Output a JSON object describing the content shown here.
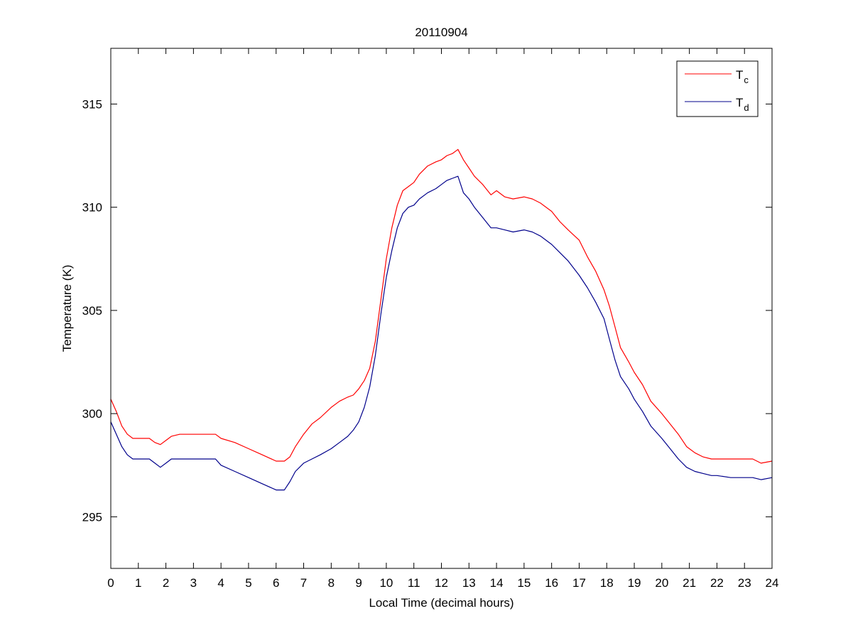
{
  "chart_data": {
    "type": "line",
    "title": "20110904",
    "xlabel": "Local Time (decimal hours)",
    "ylabel": "Temperature (K)",
    "xlim": [
      0,
      24
    ],
    "ylim": [
      292.5,
      317.7
    ],
    "xticks": [
      0,
      1,
      2,
      3,
      4,
      5,
      6,
      7,
      8,
      9,
      10,
      11,
      12,
      13,
      14,
      15,
      16,
      17,
      18,
      19,
      20,
      21,
      22,
      23,
      24
    ],
    "yticks": [
      295,
      300,
      305,
      310,
      315
    ],
    "grid": false,
    "legend_position": "top-right",
    "series": [
      {
        "name": "T",
        "subscript": "c",
        "color": "#ff0000",
        "x": [
          0,
          0.2,
          0.4,
          0.6,
          0.8,
          1.0,
          1.4,
          1.6,
          1.8,
          2.0,
          2.2,
          2.5,
          3.0,
          3.5,
          3.8,
          4.0,
          4.5,
          5.0,
          5.5,
          6.0,
          6.3,
          6.5,
          6.7,
          7.0,
          7.3,
          7.6,
          8.0,
          8.3,
          8.6,
          8.8,
          9.0,
          9.2,
          9.4,
          9.6,
          9.8,
          10.0,
          10.2,
          10.4,
          10.6,
          10.8,
          11.0,
          11.2,
          11.5,
          11.8,
          12.0,
          12.2,
          12.4,
          12.6,
          12.8,
          13.0,
          13.2,
          13.5,
          13.8,
          14.0,
          14.3,
          14.6,
          15.0,
          15.3,
          15.6,
          16.0,
          16.3,
          16.6,
          17.0,
          17.3,
          17.6,
          17.9,
          18.1,
          18.3,
          18.5,
          18.8,
          19.0,
          19.3,
          19.6,
          20.0,
          20.3,
          20.6,
          20.9,
          21.2,
          21.5,
          21.8,
          22.0,
          22.5,
          23.0,
          23.3,
          23.6,
          24.0
        ],
        "y": [
          300.7,
          300.1,
          299.4,
          299.0,
          298.8,
          298.8,
          298.8,
          298.6,
          298.5,
          298.7,
          298.9,
          299.0,
          299.0,
          299.0,
          299.0,
          298.8,
          298.6,
          298.3,
          298.0,
          297.7,
          297.7,
          297.9,
          298.4,
          299.0,
          299.5,
          299.8,
          300.3,
          300.6,
          300.8,
          300.9,
          301.2,
          301.6,
          302.2,
          303.5,
          305.5,
          307.5,
          309.0,
          310.1,
          310.8,
          311.0,
          311.2,
          311.6,
          312.0,
          312.2,
          312.3,
          312.5,
          312.6,
          312.8,
          312.3,
          311.9,
          311.5,
          311.1,
          310.6,
          310.8,
          310.5,
          310.4,
          310.5,
          310.4,
          310.2,
          309.8,
          309.3,
          308.9,
          308.4,
          307.6,
          306.9,
          306.0,
          305.2,
          304.2,
          303.2,
          302.5,
          302.0,
          301.4,
          300.6,
          300.0,
          299.5,
          299.0,
          298.4,
          298.1,
          297.9,
          297.8,
          297.8,
          297.8,
          297.8,
          297.8,
          297.6,
          297.7
        ]
      },
      {
        "name": "T",
        "subscript": "d",
        "color": "#00008b",
        "x": [
          0,
          0.2,
          0.4,
          0.6,
          0.8,
          1.0,
          1.4,
          1.6,
          1.8,
          2.0,
          2.2,
          2.5,
          3.0,
          3.5,
          3.8,
          4.0,
          4.5,
          5.0,
          5.5,
          6.0,
          6.3,
          6.5,
          6.7,
          7.0,
          7.3,
          7.6,
          8.0,
          8.3,
          8.6,
          8.8,
          9.0,
          9.2,
          9.4,
          9.6,
          9.8,
          10.0,
          10.2,
          10.4,
          10.6,
          10.8,
          11.0,
          11.2,
          11.5,
          11.8,
          12.0,
          12.2,
          12.4,
          12.6,
          12.8,
          13.0,
          13.2,
          13.5,
          13.8,
          14.0,
          14.3,
          14.6,
          15.0,
          15.3,
          15.6,
          16.0,
          16.3,
          16.6,
          17.0,
          17.3,
          17.6,
          17.9,
          18.1,
          18.3,
          18.5,
          18.8,
          19.0,
          19.3,
          19.6,
          20.0,
          20.3,
          20.6,
          20.9,
          21.2,
          21.5,
          21.8,
          22.0,
          22.5,
          23.0,
          23.3,
          23.6,
          24.0
        ],
        "y": [
          299.6,
          299.0,
          298.4,
          298.0,
          297.8,
          297.8,
          297.8,
          297.6,
          297.4,
          297.6,
          297.8,
          297.8,
          297.8,
          297.8,
          297.8,
          297.5,
          297.2,
          296.9,
          296.6,
          296.3,
          296.3,
          296.7,
          297.2,
          297.6,
          297.8,
          298.0,
          298.3,
          298.6,
          298.9,
          299.2,
          299.6,
          300.3,
          301.3,
          302.8,
          304.8,
          306.6,
          307.9,
          309.0,
          309.7,
          310.0,
          310.1,
          310.4,
          310.7,
          310.9,
          311.1,
          311.3,
          311.4,
          311.5,
          310.7,
          310.4,
          310.0,
          309.5,
          309.0,
          309.0,
          308.9,
          308.8,
          308.9,
          308.8,
          308.6,
          308.2,
          307.8,
          307.4,
          306.7,
          306.1,
          305.4,
          304.6,
          303.6,
          302.6,
          301.8,
          301.2,
          300.7,
          300.1,
          299.4,
          298.8,
          298.3,
          297.8,
          297.4,
          297.2,
          297.1,
          297.0,
          297.0,
          296.9,
          296.9,
          296.9,
          296.8,
          296.9
        ]
      }
    ]
  }
}
